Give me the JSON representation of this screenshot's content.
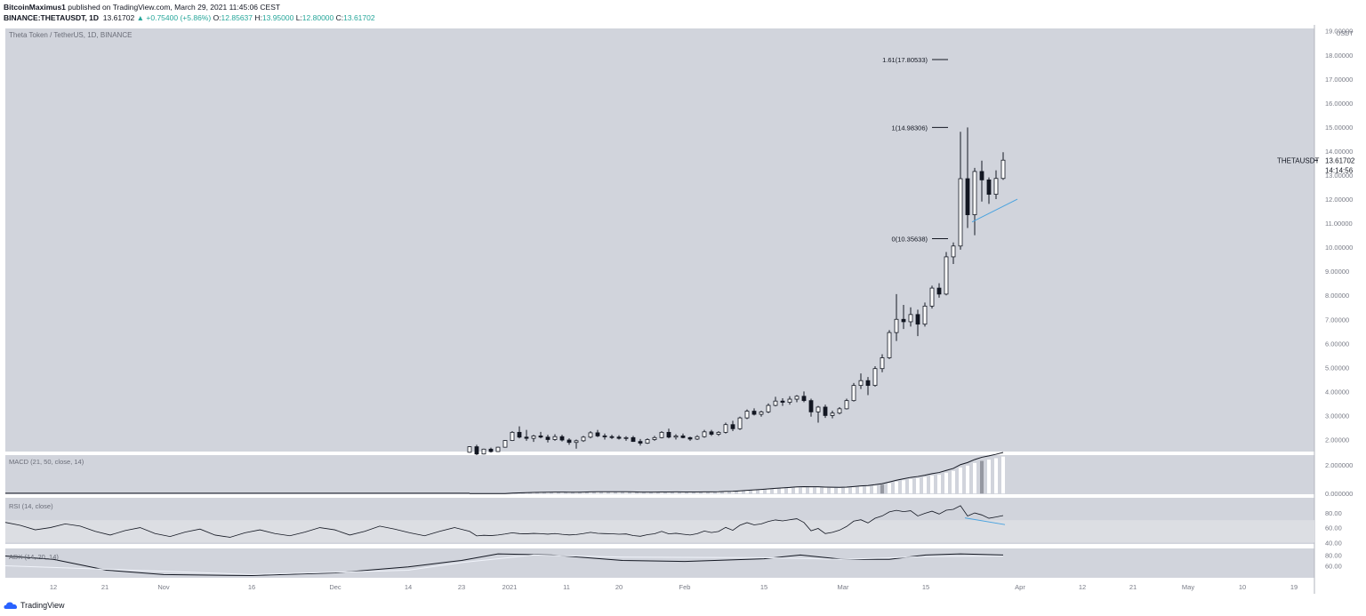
{
  "header": {
    "author": "BitcoinMaximus1",
    "published_text": "published on TradingView.com, March 29, 2021 11:45:06 CEST",
    "symbol_line": "BINANCE:THETAUSDT, 1D",
    "last": "13.61702",
    "change": "+0.75400 (+5.86%)",
    "o_label": "O:",
    "o_value": "12.85637",
    "h_label": "H:",
    "h_value": "13.95000",
    "l_label": "L:",
    "l_value": "12.80000",
    "c_label": "C:",
    "c_value": "13.61702"
  },
  "footer": {
    "brand": "TradingView"
  },
  "colors": {
    "pane_bg": "#d1d4dc",
    "rsi_band": "#dcdee3",
    "up_candle": "#ffffff",
    "down_candle": "#131722",
    "trendline": "#4aa3df",
    "axis_text": "#787b86"
  },
  "chart_data": {
    "type": "candlestick",
    "title": "Theta Token / TetherUS, 1D, BINANCE",
    "price_unit": "USDT",
    "ylim": [
      1.5,
      19.1
    ],
    "y_ticks": [
      "19.00000",
      "18.00000",
      "17.00000",
      "16.00000",
      "15.00000",
      "14.00000",
      "13.00000",
      "12.00000",
      "11.00000",
      "10.00000",
      "9.00000",
      "8.00000",
      "7.00000",
      "6.00000",
      "5.00000",
      "4.00000",
      "3.00000",
      "2.00000"
    ],
    "price_label": {
      "symbol": "THETAUSDT",
      "value": "13.61702",
      "countdown": "14:14:56"
    },
    "x_ticks": [
      "12",
      "21",
      "Nov",
      "16",
      "Dec",
      "14",
      "23",
      "2021",
      "11",
      "20",
      "Feb",
      "15",
      "Mar",
      "15",
      "Apr",
      "12",
      "21",
      "May",
      "10",
      "19"
    ],
    "fib_levels": [
      {
        "label": "1.61(17.80533)",
        "value": 17.80533
      },
      {
        "label": "1(14.98306)",
        "value": 14.98306
      },
      {
        "label": "0(10.35638)",
        "value": 10.35638
      }
    ],
    "candles": [
      [
        1.47,
        1.72,
        1.45,
        1.7
      ],
      [
        1.7,
        1.78,
        1.35,
        1.4
      ],
      [
        1.4,
        1.62,
        1.38,
        1.6
      ],
      [
        1.6,
        1.66,
        1.46,
        1.5
      ],
      [
        1.5,
        1.7,
        1.48,
        1.68
      ],
      [
        1.68,
        1.98,
        1.66,
        1.96
      ],
      [
        1.96,
        2.35,
        1.94,
        2.3
      ],
      [
        2.3,
        2.55,
        2.05,
        2.1
      ],
      [
        2.1,
        2.4,
        1.95,
        2.05
      ],
      [
        2.05,
        2.2,
        1.9,
        2.15
      ],
      [
        2.15,
        2.32,
        2.05,
        2.1
      ],
      [
        2.1,
        2.2,
        1.88,
        2.0
      ],
      [
        2.0,
        2.22,
        1.95,
        2.12
      ],
      [
        2.12,
        2.2,
        1.92,
        1.98
      ],
      [
        1.98,
        2.05,
        1.78,
        1.88
      ],
      [
        1.88,
        2.0,
        1.62,
        1.95
      ],
      [
        1.95,
        2.15,
        1.9,
        2.1
      ],
      [
        2.1,
        2.35,
        2.05,
        2.28
      ],
      [
        2.28,
        2.4,
        2.1,
        2.15
      ],
      [
        2.15,
        2.25,
        2.0,
        2.12
      ],
      [
        2.12,
        2.2,
        2.02,
        2.1
      ],
      [
        2.1,
        2.18,
        2.0,
        2.05
      ],
      [
        2.05,
        2.14,
        1.95,
        2.08
      ],
      [
        2.08,
        2.15,
        1.9,
        1.92
      ],
      [
        1.92,
        2.02,
        1.75,
        1.85
      ],
      [
        1.85,
        2.05,
        1.82,
        2.0
      ],
      [
        2.0,
        2.15,
        1.95,
        2.08
      ],
      [
        2.08,
        2.35,
        2.05,
        2.3
      ],
      [
        2.3,
        2.45,
        2.05,
        2.1
      ],
      [
        2.1,
        2.22,
        2.0,
        2.15
      ],
      [
        2.15,
        2.25,
        2.05,
        2.08
      ],
      [
        2.08,
        2.12,
        1.95,
        2.02
      ],
      [
        2.02,
        2.18,
        1.98,
        2.12
      ],
      [
        2.12,
        2.4,
        2.08,
        2.32
      ],
      [
        2.32,
        2.4,
        2.15,
        2.22
      ],
      [
        2.22,
        2.35,
        2.15,
        2.3
      ],
      [
        2.3,
        2.7,
        2.25,
        2.62
      ],
      [
        2.62,
        2.78,
        2.35,
        2.45
      ],
      [
        2.45,
        2.95,
        2.4,
        2.9
      ],
      [
        2.9,
        3.25,
        2.85,
        3.18
      ],
      [
        3.18,
        3.3,
        3.0,
        3.05
      ],
      [
        3.05,
        3.2,
        2.95,
        3.15
      ],
      [
        3.15,
        3.5,
        3.1,
        3.42
      ],
      [
        3.42,
        3.78,
        3.38,
        3.6
      ],
      [
        3.6,
        3.72,
        3.4,
        3.55
      ],
      [
        3.55,
        3.8,
        3.45,
        3.68
      ],
      [
        3.68,
        3.85,
        3.55,
        3.8
      ],
      [
        3.8,
        4.0,
        3.55,
        3.62
      ],
      [
        3.62,
        3.7,
        2.95,
        3.15
      ],
      [
        3.15,
        3.4,
        2.7,
        3.35
      ],
      [
        3.35,
        3.45,
        2.9,
        3.0
      ],
      [
        3.0,
        3.2,
        2.88,
        3.1
      ],
      [
        3.1,
        3.35,
        3.05,
        3.28
      ],
      [
        3.28,
        3.7,
        3.25,
        3.62
      ],
      [
        3.62,
        4.35,
        3.58,
        4.25
      ],
      [
        4.25,
        4.75,
        4.1,
        4.45
      ],
      [
        4.45,
        4.6,
        3.85,
        4.25
      ],
      [
        4.25,
        5.05,
        4.2,
        4.95
      ],
      [
        4.95,
        5.55,
        4.8,
        5.4
      ],
      [
        5.4,
        6.55,
        5.35,
        6.45
      ],
      [
        6.45,
        8.05,
        6.1,
        7.0
      ],
      [
        7.0,
        7.6,
        6.6,
        6.9
      ],
      [
        6.9,
        7.5,
        6.7,
        7.2
      ],
      [
        7.2,
        7.4,
        6.3,
        6.8
      ],
      [
        6.8,
        7.7,
        6.7,
        7.55
      ],
      [
        7.55,
        8.4,
        7.45,
        8.3
      ],
      [
        8.3,
        8.5,
        7.9,
        8.05
      ],
      [
        8.05,
        9.8,
        8.0,
        9.6
      ],
      [
        9.6,
        10.2,
        9.3,
        10.05
      ],
      [
        10.05,
        14.8,
        9.9,
        12.85
      ],
      [
        12.85,
        14.98,
        10.8,
        11.35
      ],
      [
        11.35,
        13.3,
        10.5,
        13.15
      ],
      [
        13.15,
        13.6,
        11.9,
        12.8
      ],
      [
        12.8,
        12.9,
        11.8,
        12.2
      ],
      [
        12.2,
        13.2,
        12.0,
        12.86
      ],
      [
        12.86,
        13.95,
        12.8,
        13.62
      ]
    ],
    "macd": {
      "label": "MACD (21, 50, close, 14)",
      "ylim": [
        -0.05,
        2.7
      ],
      "y_ticks": [
        "2.000000",
        "0.000000"
      ]
    },
    "rsi": {
      "label": "RSI (14, close)",
      "ylim": [
        38,
        100
      ],
      "y_ticks": [
        "80.00",
        "60.00",
        "40.00"
      ],
      "band": [
        40,
        70
      ]
    },
    "pane3": {
      "label": "ADX (14, 20, 14)",
      "ylim": [
        38,
        92
      ],
      "y_ticks": [
        "80.00",
        "60.00"
      ]
    }
  }
}
